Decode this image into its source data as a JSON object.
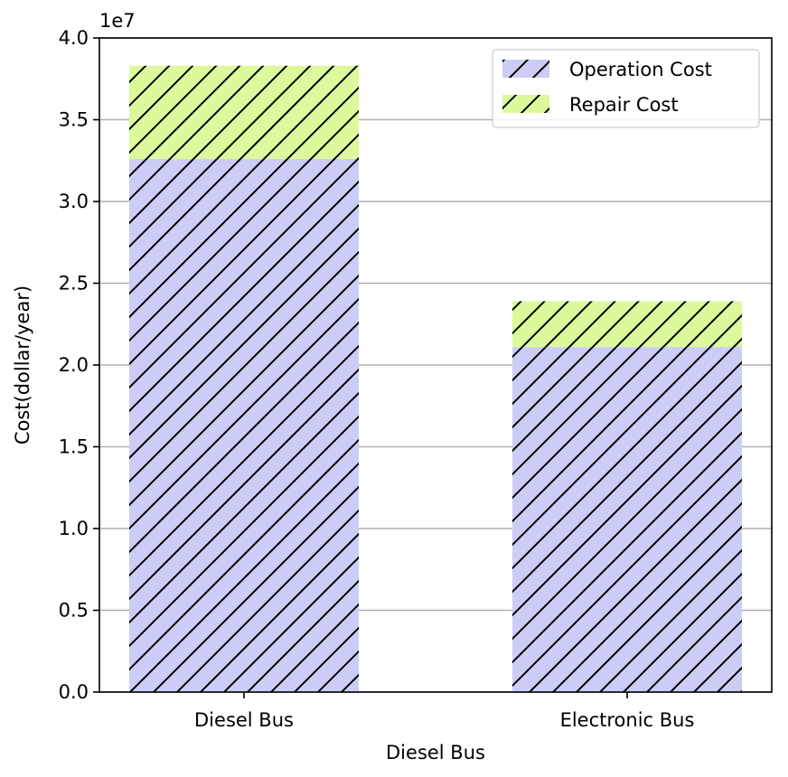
{
  "chart_data": {
    "type": "bar",
    "stacked": true,
    "categories": [
      "Diesel Bus",
      "Electronic Bus"
    ],
    "series": [
      {
        "name": "Operation Cost",
        "values": [
          32600000,
          21100000
        ],
        "color": "#cccdf6"
      },
      {
        "name": "Repair Cost",
        "values": [
          5700000,
          2800000
        ],
        "color": "#dcfa9b"
      }
    ],
    "xlabel": "Diesel Bus",
    "ylabel": "Cost(dollar/year)",
    "ylim": [
      0,
      40000000
    ],
    "yticks": [
      0.0,
      0.5,
      1.0,
      1.5,
      2.0,
      2.5,
      3.0,
      3.5,
      4.0
    ],
    "ytick_labels": [
      "0.0",
      "0.5",
      "1.0",
      "1.5",
      "2.0",
      "2.5",
      "3.0",
      "3.5",
      "4.0"
    ],
    "y_scale_factor": 10000000,
    "y_offset_label": "1e7",
    "grid": "y",
    "hatch": "diagonal",
    "legend": {
      "position": "top-right",
      "entries": [
        "Operation Cost",
        "Repair Cost"
      ]
    }
  }
}
